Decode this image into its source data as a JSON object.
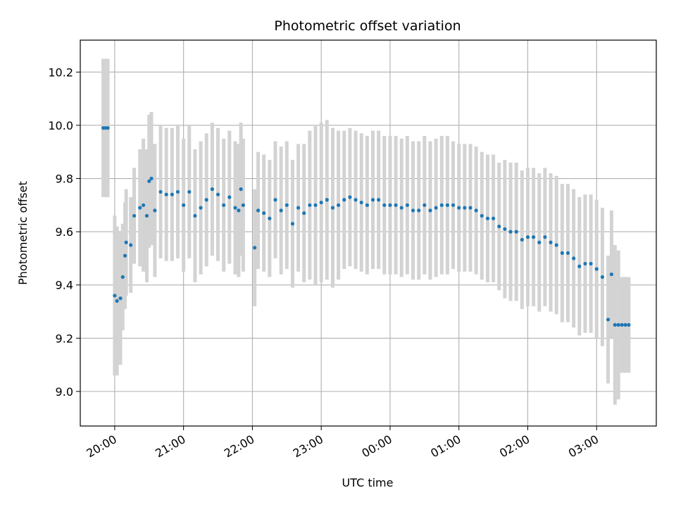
{
  "chart_data": {
    "type": "scatter",
    "title": "Photometric offset variation",
    "xlabel": "UTC time",
    "ylabel": "Photometric offset",
    "grid": true,
    "x_unit": "UTC time (HH:MM)",
    "xlim": [
      "19:30",
      "03:52"
    ],
    "ylim": [
      8.87,
      10.32
    ],
    "x_ticks": [
      "20:00",
      "21:00",
      "22:00",
      "23:00",
      "00:00",
      "01:00",
      "02:00",
      "03:00"
    ],
    "y_ticks": [
      "9.0",
      "9.2",
      "9.4",
      "9.6",
      "9.8",
      "10.0",
      "10.2"
    ],
    "marker_color": "#1f77b4",
    "errorbar_color": "#d3d3d3",
    "series": [
      {
        "name": "",
        "x": [
          "19:50",
          "19:52",
          "19:54",
          "20:00",
          "20:02",
          "20:05",
          "20:07",
          "20:09",
          "20:10",
          "20:14",
          "20:17",
          "20:22",
          "20:25",
          "20:28",
          "20:30",
          "20:32",
          "20:35",
          "20:40",
          "20:45",
          "20:50",
          "20:55",
          "21:00",
          "21:05",
          "21:10",
          "21:15",
          "21:20",
          "21:25",
          "21:30",
          "21:35",
          "21:40",
          "21:45",
          "21:48",
          "21:50",
          "21:52",
          "22:02",
          "22:05",
          "22:10",
          "22:15",
          "22:20",
          "22:25",
          "22:30",
          "22:35",
          "22:40",
          "22:45",
          "22:50",
          "22:55",
          "23:00",
          "23:05",
          "23:10",
          "23:15",
          "23:20",
          "23:25",
          "23:30",
          "23:35",
          "23:40",
          "23:45",
          "23:50",
          "23:55",
          "00:00",
          "00:05",
          "00:10",
          "00:15",
          "00:20",
          "00:25",
          "00:30",
          "00:35",
          "00:40",
          "00:45",
          "00:50",
          "00:55",
          "01:00",
          "01:05",
          "01:10",
          "01:15",
          "01:20",
          "01:25",
          "01:30",
          "01:35",
          "01:40",
          "01:45",
          "01:50",
          "01:55",
          "02:00",
          "02:05",
          "02:10",
          "02:15",
          "02:20",
          "02:25",
          "02:30",
          "02:35",
          "02:40",
          "02:45",
          "02:50",
          "02:55",
          "03:00",
          "03:05",
          "03:10",
          "03:13",
          "03:16",
          "03:19",
          "03:22",
          "03:25",
          "03:28"
        ],
        "y": [
          9.99,
          9.99,
          9.99,
          9.36,
          9.34,
          9.35,
          9.43,
          9.51,
          9.56,
          9.55,
          9.66,
          9.69,
          9.7,
          9.66,
          9.79,
          9.8,
          9.68,
          9.75,
          9.74,
          9.74,
          9.75,
          9.7,
          9.75,
          9.66,
          9.69,
          9.72,
          9.76,
          9.74,
          9.7,
          9.73,
          9.69,
          9.68,
          9.76,
          9.7,
          9.54,
          9.68,
          9.67,
          9.65,
          9.72,
          9.68,
          9.7,
          9.63,
          9.69,
          9.67,
          9.7,
          9.7,
          9.71,
          9.72,
          9.69,
          9.7,
          9.72,
          9.73,
          9.72,
          9.71,
          9.7,
          9.72,
          9.72,
          9.7,
          9.7,
          9.7,
          9.69,
          9.7,
          9.68,
          9.68,
          9.7,
          9.68,
          9.69,
          9.7,
          9.7,
          9.7,
          9.69,
          9.69,
          9.69,
          9.68,
          9.66,
          9.65,
          9.65,
          9.62,
          9.61,
          9.6,
          9.6,
          9.57,
          9.58,
          9.58,
          9.56,
          9.58,
          9.56,
          9.55,
          9.52,
          9.52,
          9.5,
          9.47,
          9.48,
          9.48,
          9.46,
          9.43,
          9.27,
          9.44,
          9.25,
          9.25,
          9.25,
          9.25,
          9.25
        ],
        "err": [
          0.26,
          0.26,
          0.26,
          0.3,
          0.28,
          0.25,
          0.2,
          0.2,
          0.2,
          0.18,
          0.18,
          0.22,
          0.25,
          0.25,
          0.25,
          0.25,
          0.25,
          0.25,
          0.25,
          0.25,
          0.25,
          0.25,
          0.25,
          0.25,
          0.25,
          0.25,
          0.25,
          0.25,
          0.25,
          0.25,
          0.25,
          0.25,
          0.25,
          0.25,
          0.22,
          0.22,
          0.22,
          0.22,
          0.22,
          0.24,
          0.24,
          0.24,
          0.24,
          0.26,
          0.28,
          0.3,
          0.3,
          0.3,
          0.3,
          0.28,
          0.26,
          0.26,
          0.26,
          0.26,
          0.26,
          0.26,
          0.26,
          0.26,
          0.26,
          0.26,
          0.26,
          0.26,
          0.26,
          0.26,
          0.26,
          0.26,
          0.26,
          0.26,
          0.26,
          0.24,
          0.24,
          0.24,
          0.24,
          0.24,
          0.24,
          0.24,
          0.24,
          0.24,
          0.26,
          0.26,
          0.26,
          0.26,
          0.26,
          0.26,
          0.26,
          0.26,
          0.26,
          0.26,
          0.26,
          0.26,
          0.26,
          0.26,
          0.26,
          0.26,
          0.26,
          0.26,
          0.24,
          0.24,
          0.3,
          0.28,
          0.18,
          0.18,
          0.18
        ]
      }
    ]
  }
}
